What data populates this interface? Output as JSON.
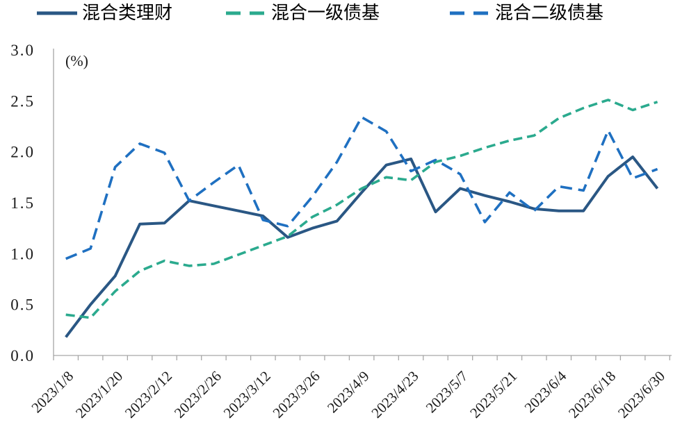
{
  "chart_data": {
    "type": "line",
    "title": "",
    "unit_label": "(%)",
    "grid": false,
    "legend_position": "top",
    "ylim": [
      0,
      3
    ],
    "y_tick_labels": [
      "0.0",
      "0.5",
      "1.0",
      "1.5",
      "2.0",
      "2.5",
      "3.0"
    ],
    "x_tick_labels": [
      "2023/1/8",
      "2023/1/20",
      "2023/2/12",
      "2023/2/26",
      "2023/3/12",
      "2023/3/26",
      "2023/4/9",
      "2023/4/23",
      "2023/5/7",
      "2023/5/21",
      "2023/6/4",
      "2023/6/18",
      "2023/6/30"
    ],
    "label_point_indices": [
      0,
      2,
      4,
      6,
      8,
      10,
      12,
      14,
      16,
      18,
      20,
      22,
      24
    ],
    "n_points": 25,
    "series": [
      {
        "name": "混合类理财",
        "color": "#2A5784",
        "line_style": "solid",
        "values": [
          0.18,
          0.5,
          0.78,
          1.29,
          1.3,
          1.52,
          1.47,
          1.42,
          1.37,
          1.16,
          1.25,
          1.32,
          1.6,
          1.87,
          1.93,
          1.41,
          1.64,
          1.57,
          1.51,
          1.44,
          1.42,
          1.42,
          1.76,
          1.95,
          1.64
        ]
      },
      {
        "name": "混合一级债基",
        "color": "#2BAA8E",
        "line_style": "dashed",
        "values": [
          0.4,
          0.37,
          0.63,
          0.83,
          0.93,
          0.88,
          0.9,
          0.99,
          1.08,
          1.17,
          1.36,
          1.48,
          1.64,
          1.75,
          1.72,
          1.9,
          1.96,
          2.04,
          2.11,
          2.16,
          2.33,
          2.43,
          2.51,
          2.41,
          2.49
        ]
      },
      {
        "name": "混合二级债基",
        "color": "#1F70C1",
        "line_style": "dashed",
        "values": [
          0.95,
          1.05,
          1.85,
          2.08,
          1.99,
          1.52,
          1.7,
          1.87,
          1.33,
          1.27,
          1.56,
          1.9,
          2.34,
          2.2,
          1.81,
          1.92,
          1.78,
          1.31,
          1.6,
          1.42,
          1.66,
          1.62,
          2.21,
          1.74,
          1.83
        ]
      }
    ]
  },
  "style_colors": {
    "axis_line": "#A6A6A6",
    "tick_mark": "#A6A6A6",
    "text": "#1a1a1a"
  }
}
